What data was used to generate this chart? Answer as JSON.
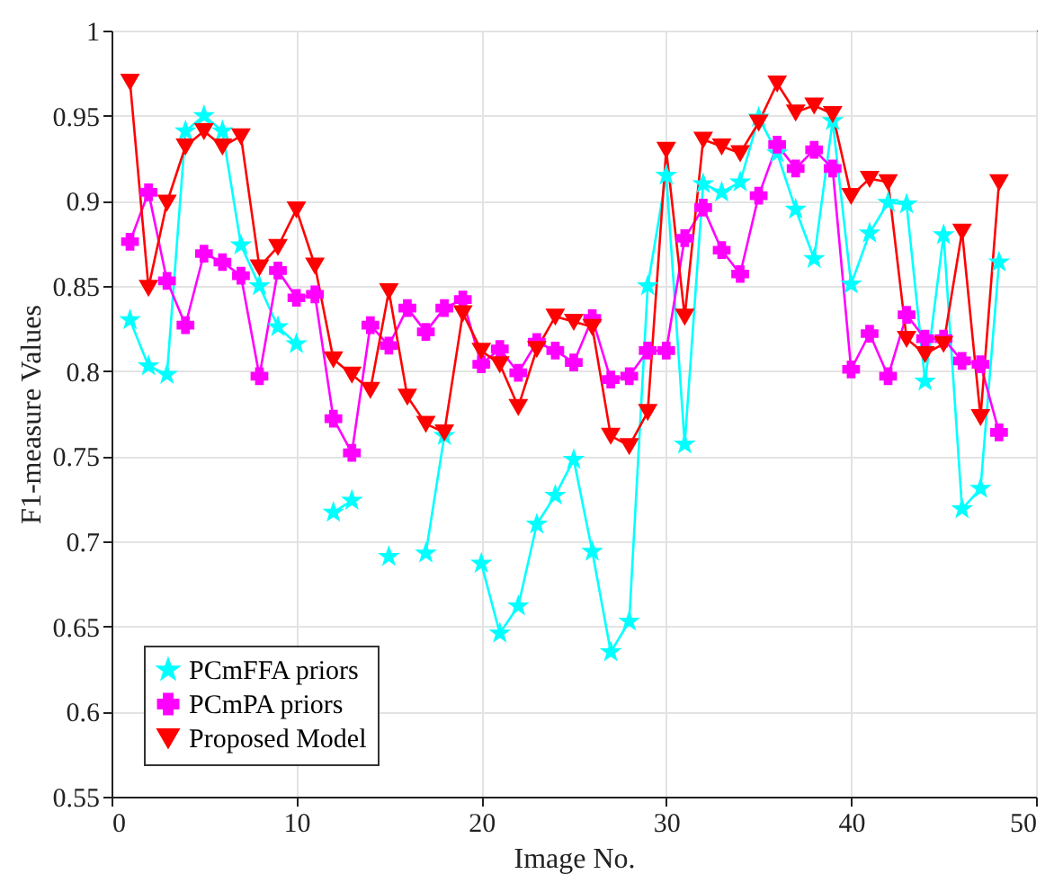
{
  "chart_data": {
    "type": "line",
    "xlabel": "Image No.",
    "ylabel": "F1-measure Values",
    "x": [
      1,
      2,
      3,
      4,
      5,
      6,
      7,
      8,
      9,
      10,
      11,
      12,
      13,
      14,
      15,
      16,
      17,
      18,
      19,
      20,
      21,
      22,
      23,
      24,
      25,
      26,
      27,
      28,
      29,
      30,
      31,
      32,
      33,
      34,
      35,
      36,
      37,
      38,
      39,
      40,
      41,
      42,
      43,
      44,
      45,
      46,
      47,
      48
    ],
    "series": [
      {
        "name": "PCmFFA priors",
        "color": "#00ffff",
        "marker": "star",
        "values": [
          0.83,
          0.803,
          0.798,
          0.941,
          0.95,
          0.941,
          0.874,
          0.85,
          0.826,
          0.816,
          null,
          0.717,
          0.724,
          null,
          0.691,
          null,
          0.693,
          0.762,
          null,
          0.687,
          0.646,
          0.662,
          0.71,
          0.727,
          0.748,
          0.694,
          0.635,
          0.653,
          0.85,
          0.915,
          0.757,
          0.91,
          0.905,
          0.911,
          0.949,
          0.928,
          0.895,
          0.866,
          0.947,
          0.851,
          0.881,
          0.899,
          0.898,
          0.794,
          0.88,
          0.719,
          0.731,
          0.864
        ]
      },
      {
        "name": "PCmPA priors",
        "color": "#ff00ff",
        "marker": "cross",
        "values": [
          0.876,
          0.905,
          0.853,
          0.827,
          0.869,
          0.864,
          0.856,
          0.797,
          0.859,
          0.843,
          0.845,
          0.772,
          0.752,
          0.827,
          0.815,
          0.837,
          0.823,
          0.837,
          0.842,
          0.804,
          0.813,
          0.799,
          0.817,
          0.812,
          0.805,
          0.831,
          0.795,
          0.797,
          0.812,
          0.812,
          0.878,
          0.896,
          0.871,
          0.857,
          0.903,
          0.933,
          0.919,
          0.93,
          0.919,
          0.801,
          0.822,
          0.797,
          0.833,
          0.819,
          0.819,
          0.806,
          0.804,
          0.764
        ]
      },
      {
        "name": "Proposed Model",
        "color": "#ff0000",
        "marker": "triangle",
        "values": [
          0.97,
          0.849,
          0.899,
          0.932,
          0.941,
          0.932,
          0.938,
          0.861,
          0.873,
          0.895,
          0.862,
          0.807,
          0.798,
          0.789,
          0.847,
          0.785,
          0.769,
          0.764,
          0.834,
          0.812,
          0.804,
          0.779,
          0.813,
          0.832,
          0.829,
          0.826,
          0.762,
          0.756,
          0.776,
          0.93,
          0.832,
          0.936,
          0.932,
          0.928,
          0.946,
          0.969,
          0.952,
          0.956,
          0.951,
          0.903,
          0.913,
          0.911,
          0.819,
          0.81,
          0.816,
          0.882,
          0.773,
          0.911
        ]
      }
    ],
    "xlim": [
      0,
      50
    ],
    "xticks": [
      0,
      10,
      20,
      30,
      40,
      50
    ],
    "ylim": [
      0.55,
      1
    ],
    "yticks": [
      0.55,
      0.6,
      0.65,
      0.7,
      0.75,
      0.8,
      0.85,
      0.9,
      0.95,
      1
    ],
    "grid": true,
    "legend": "bottom left",
    "line_style": "solid"
  }
}
